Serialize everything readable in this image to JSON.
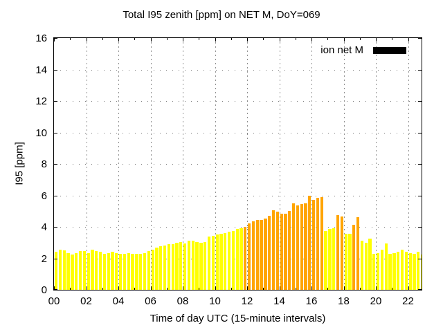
{
  "title": "Total I95 zenith [ppm] on NET M, DoY=069",
  "legend": {
    "label": "ion net M",
    "swatch_color": "#000000"
  },
  "colors": {
    "y": "#ffff00",
    "o": "#ffa500",
    "axis": "#000000",
    "grid": "#808080",
    "background": "#ffffff"
  },
  "chart_data": {
    "type": "bar",
    "title": "Total I95 zenith [ppm] on NET M, DoY=069",
    "xlabel": "Time of day UTC (15-minute intervals)",
    "ylabel": "I95 [ppm]",
    "ylim": [
      0,
      16
    ],
    "xlim_hours": [
      0,
      22.84
    ],
    "grid": true,
    "legend_position": "top-right",
    "x_start": "00:00",
    "x_step_minutes": 15,
    "n_points": 92,
    "xticks": [
      "00",
      "02",
      "04",
      "06",
      "08",
      "10",
      "12",
      "14",
      "16",
      "18",
      "20",
      "22"
    ],
    "yticks": [
      0,
      2,
      4,
      6,
      8,
      10,
      12,
      14,
      16
    ],
    "series": [
      {
        "name": "ion net M",
        "values": [
          2.4,
          2.55,
          2.5,
          2.35,
          2.25,
          2.35,
          2.45,
          2.45,
          2.35,
          2.55,
          2.45,
          2.4,
          2.3,
          2.35,
          2.4,
          2.35,
          2.3,
          2.3,
          2.35,
          2.3,
          2.3,
          2.3,
          2.35,
          2.45,
          2.55,
          2.7,
          2.75,
          2.8,
          2.9,
          2.9,
          3.0,
          3.05,
          2.95,
          3.1,
          3.1,
          3.05,
          3.0,
          3.05,
          3.4,
          3.45,
          3.5,
          3.55,
          3.6,
          3.7,
          3.75,
          3.85,
          3.9,
          4.0,
          4.2,
          4.35,
          4.45,
          4.45,
          4.55,
          4.7,
          5.05,
          4.95,
          4.85,
          4.85,
          5.0,
          5.5,
          5.35,
          5.45,
          5.5,
          6.0,
          5.7,
          5.85,
          5.9,
          3.75,
          3.85,
          3.9,
          4.75,
          4.65,
          3.55,
          3.55,
          4.15,
          4.6,
          3.1,
          3.0,
          3.25,
          2.3,
          2.35,
          2.55,
          2.95,
          2.3,
          2.35,
          2.4,
          2.55,
          2.4,
          2.35,
          2.3,
          2.4,
          2.25
        ],
        "point_colors": "yyyyyyyyyyyyyyyyyyyyyyyyyyyyyyyyyyyyyyyyyyyyyyyooooooooooooooooooooyyyooyyooyyyyyyyyyyyyyyyy"
      }
    ]
  }
}
